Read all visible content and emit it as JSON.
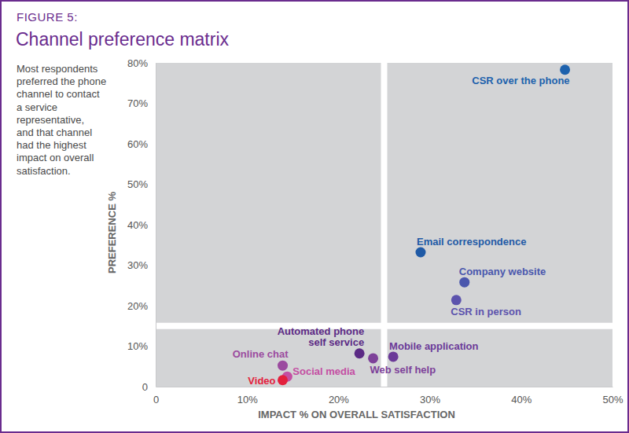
{
  "chart_data": {
    "type": "scatter",
    "subtitle": "FIGURE 5:",
    "title": "Channel preference matrix",
    "annotations": [
      "Most respondents",
      "preferred the phone",
      "channel to contact",
      "a service",
      "representative,",
      "and that channel",
      "had the highest",
      "impact on overall",
      "satisfaction."
    ],
    "x_label": "IMPACT % ON OVERALL SATISFACTION",
    "y_label": "PREFERENCE %",
    "labels": [
      "CSR over the phone",
      "Email correspondence",
      "Company website",
      "CSR in person",
      "Mobile application",
      "Web self help",
      "Automated phone\nself service",
      "Online chat",
      "Social media",
      "Video"
    ],
    "x": [
      44.8,
      29.0,
      33.8,
      32.9,
      26.0,
      23.8,
      22.3,
      13.9,
      14.4,
      13.9
    ],
    "values": [
      78.3,
      33.2,
      25.8,
      21.4,
      7.4,
      7.0,
      8.2,
      5.2,
      2.5,
      1.6
    ],
    "colors": [
      "#1d62ad",
      "#1f5aa6",
      "#4a57ad",
      "#5c53ad",
      "#6b3a98",
      "#7d4199",
      "#5b2a85",
      "#9b4b9f",
      "#c44fa3",
      "#e3203c"
    ],
    "dividers": {
      "x": 25,
      "y": 15
    },
    "xlim": [
      0,
      50
    ],
    "ylim": [
      0,
      80
    ],
    "xticks": [
      0,
      {
        "value": 10,
        "label": "10%"
      },
      {
        "value": 20,
        "label": "20%"
      },
      {
        "value": 30,
        "label": "30%"
      },
      {
        "value": 40,
        "label": "40%"
      },
      {
        "value": 50,
        "label": "50%"
      }
    ],
    "yticks": [
      0,
      {
        "value": 10,
        "label": "10%"
      },
      {
        "value": 20,
        "label": "20%"
      },
      {
        "value": 30,
        "label": "30%"
      },
      {
        "value": 40,
        "label": "40%"
      },
      {
        "value": 50,
        "label": "50%"
      },
      {
        "value": 60,
        "label": "60%"
      },
      {
        "value": 70,
        "label": "70%"
      },
      {
        "value": 80,
        "label": "80%"
      }
    ],
    "grid": false
  }
}
